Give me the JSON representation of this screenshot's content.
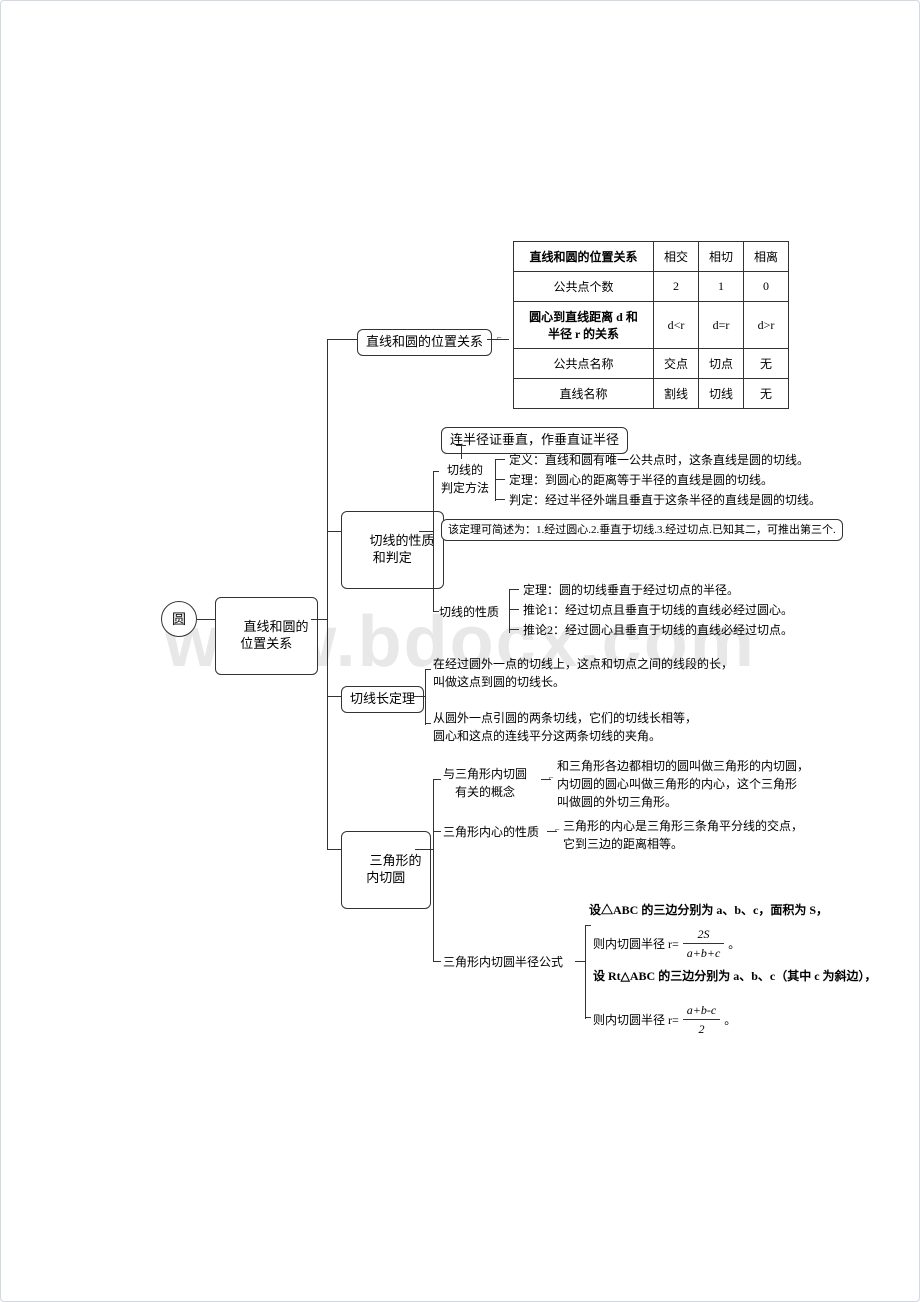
{
  "watermark": "www.bdocx.com",
  "root": {
    "label": "圆"
  },
  "main_branch": {
    "label": "直线和圆的\n位置关系"
  },
  "section1": {
    "node_label": "直线和圆的位置关系",
    "table": {
      "rows": [
        {
          "header": "直线和圆的位置关系",
          "cells": [
            "相交",
            "相切",
            "相离"
          ],
          "header_bold": true
        },
        {
          "header": "公共点个数",
          "cells": [
            "2",
            "1",
            "0"
          ]
        },
        {
          "header": "圆心到直线距离 d 和\n半径 r 的关系",
          "cells": [
            "d<r",
            "d=r",
            "d>r"
          ],
          "header_bold": true
        },
        {
          "header": "公共点名称",
          "cells": [
            "交点",
            "切点",
            "无"
          ]
        },
        {
          "header": "直线名称",
          "cells": [
            "割线",
            "切线",
            "无"
          ]
        }
      ]
    }
  },
  "section2": {
    "node_label": "切线的性质\n和判定",
    "top_box": "连半径证垂直，作垂直证半径",
    "branch1_label": "切线的\n判定方法",
    "branch1_items": [
      "定义：直线和圆有唯一公共点时，这条直线是圆的切线。",
      "定理：到圆心的距离等于半径的直线是圆的切线。",
      "判定：经过半径外端且垂直于这条半径的直线是圆的切线。"
    ],
    "summary_box": "该定理可简述为：1.经过圆心.2.垂直于切线.3.经过切点.已知其二，可推出第三个.",
    "branch2_label": "切线的性质",
    "branch2_items": [
      "定理：圆的切线垂直于经过切点的半径。",
      "推论1：经过切点且垂直于切线的直线必经过圆心。",
      "推论2：经过圆心且垂直于切线的直线必经过切点。"
    ]
  },
  "section3": {
    "node_label": "切线长定理",
    "para1": "在经过圆外一点的切线上，这点和切点之间的线段的长，\n叫做这点到圆的切线长。",
    "para2": "从圆外一点引圆的两条切线，它们的切线长相等，\n圆心和这点的连线平分这两条切线的夹角。"
  },
  "section4": {
    "node_label": "三角形的\n内切圆",
    "branch1_label": "与三角形内切圆\n有关的概念",
    "branch1_text": "和三角形各边都相切的圆叫做三角形的内切圆，\n内切圆的圆心叫做三角形的内心，这个三角形\n叫做圆的外切三角形。",
    "branch2_label": "三角形内心的性质",
    "branch2_text": "三角形的内心是三角形三条角平分线的交点，\n它到三边的距离相等。",
    "branch3_label": "三角形内切圆半径公式",
    "formula_intro": "设△ABC 的三边分别为 a、b、c，面积为 S，",
    "formula1_prefix": "则内切圆半径 r=",
    "formula1_num": "2S",
    "formula1_den": "a+b+c",
    "formula1_suffix": "。",
    "formula2_intro": "设 Rt△ABC 的三边分别为 a、b、c（其中 c 为斜边），",
    "formula2_prefix": "则内切圆半径 r=",
    "formula2_num": "a+b-c",
    "formula2_den": "2",
    "formula2_suffix": "。"
  },
  "colors": {
    "border": "#333333",
    "background": "#ffffff",
    "watermark": "#e8e8e8"
  }
}
